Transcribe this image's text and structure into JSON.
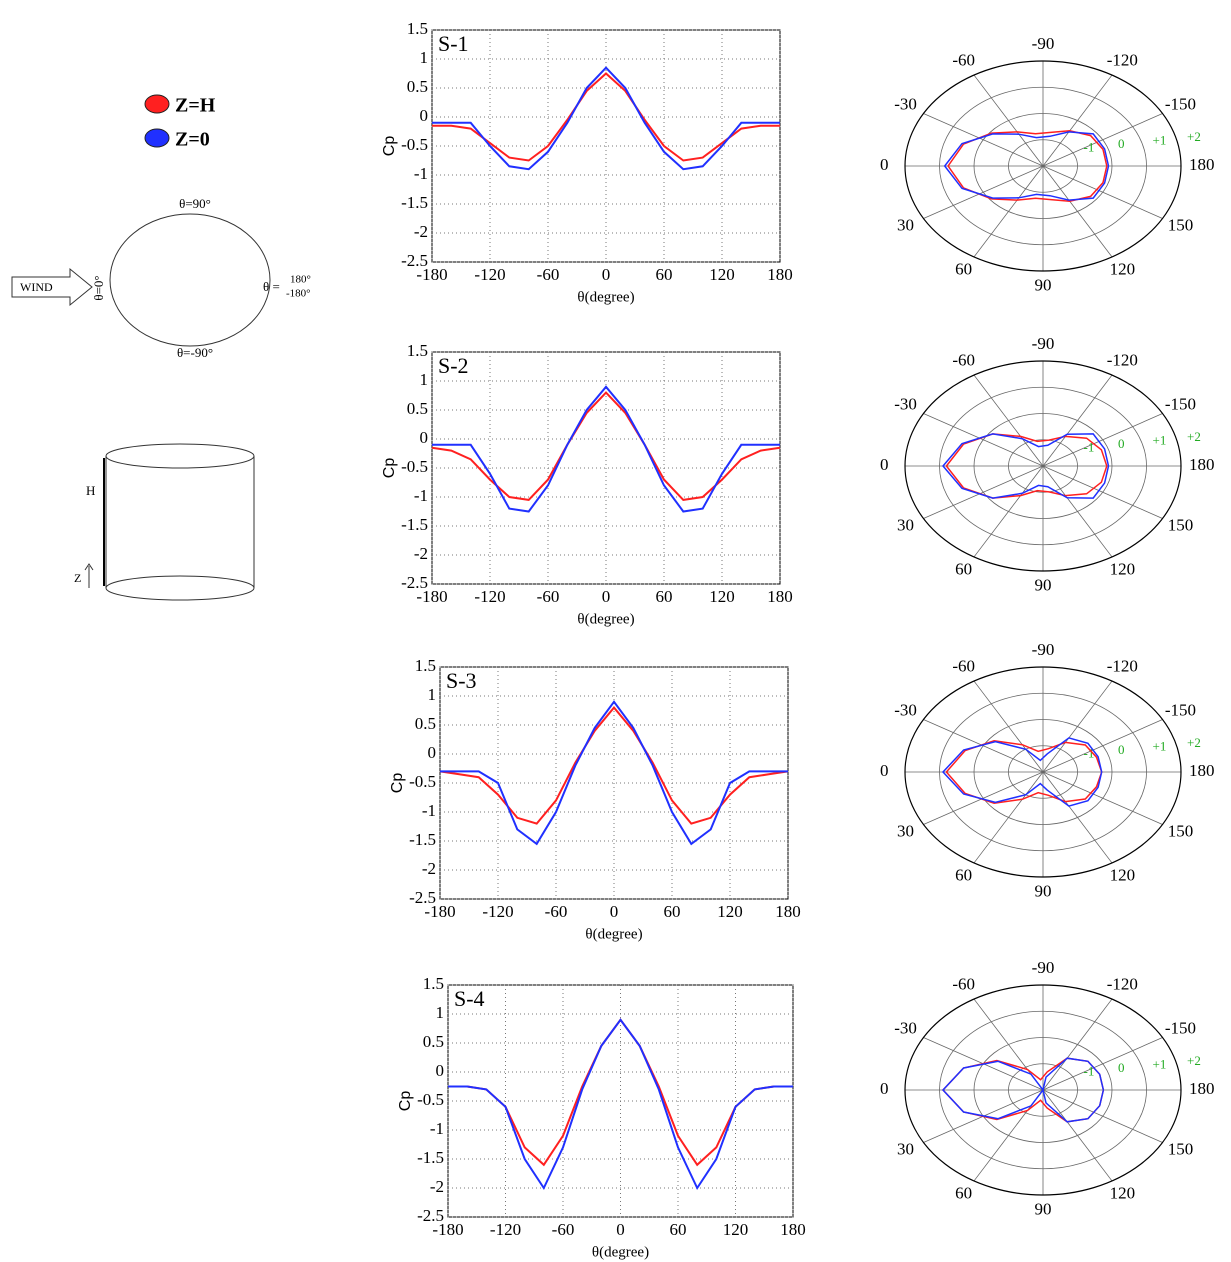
{
  "chart_data": [
    {
      "type": "line",
      "title": "S-1",
      "xlabel": "θ(degree)",
      "ylabel": "Cp",
      "grid": true,
      "x": [
        -180,
        -160,
        -140,
        -120,
        -100,
        -80,
        -60,
        -40,
        -20,
        0,
        20,
        40,
        60,
        80,
        100,
        120,
        140,
        160,
        180
      ],
      "xlim": [
        -180,
        180
      ],
      "xticks": [
        -180,
        -120,
        -60,
        0,
        60,
        120,
        180
      ],
      "ylim": [
        -2.5,
        1.5
      ],
      "yticks": [
        -2.5,
        -2,
        -1.5,
        -1,
        -0.5,
        0,
        0.5,
        1,
        1.5
      ],
      "series": [
        {
          "name": "Z=H",
          "color": "#ff2020",
          "values": [
            -0.15,
            -0.15,
            -0.2,
            -0.45,
            -0.7,
            -0.75,
            -0.5,
            -0.05,
            0.45,
            0.75,
            0.45,
            -0.05,
            -0.5,
            -0.75,
            -0.7,
            -0.45,
            -0.2,
            -0.15,
            -0.15
          ]
        },
        {
          "name": "Z=0",
          "color": "#2030ff",
          "values": [
            -0.1,
            -0.1,
            -0.1,
            -0.5,
            -0.85,
            -0.9,
            -0.6,
            -0.1,
            0.5,
            0.85,
            0.5,
            -0.1,
            -0.6,
            -0.9,
            -0.85,
            -0.5,
            -0.1,
            -0.1,
            -0.1
          ]
        }
      ]
    },
    {
      "type": "polar",
      "theta": [
        -180,
        -160,
        -140,
        -120,
        -100,
        -80,
        -60,
        -40,
        -20,
        0,
        20,
        40,
        60,
        80,
        100,
        120,
        140,
        160,
        180
      ],
      "rlim": [
        -2,
        2
      ],
      "rticks": [
        -1,
        0,
        {
          "value": 1,
          "label": "+1"
        },
        {
          "value": 2,
          "label": "+2"
        }
      ],
      "rtick_color": "#22aa22",
      "thetaticks": [
        0,
        30,
        60,
        90,
        120,
        150,
        180,
        -150,
        -120,
        -90,
        -60,
        -30
      ],
      "series": [
        {
          "color": "#ff2020",
          "values": [
            -0.15,
            -0.15,
            -0.2,
            -0.45,
            -0.7,
            -0.75,
            -0.5,
            -0.05,
            0.45,
            0.75,
            0.45,
            -0.05,
            -0.5,
            -0.75,
            -0.7,
            -0.45,
            -0.2,
            -0.15,
            -0.15
          ]
        },
        {
          "color": "#2030ff",
          "values": [
            -0.1,
            -0.1,
            -0.1,
            -0.5,
            -0.85,
            -0.9,
            -0.6,
            -0.1,
            0.5,
            0.85,
            0.5,
            -0.1,
            -0.6,
            -0.9,
            -0.85,
            -0.5,
            -0.1,
            -0.1,
            -0.1
          ]
        }
      ]
    },
    {
      "type": "line",
      "title": "S-2",
      "xlabel": "θ(degree)",
      "ylabel": "Cp",
      "grid": true,
      "x": [
        -180,
        -160,
        -140,
        -120,
        -100,
        -80,
        -60,
        -40,
        -20,
        0,
        20,
        40,
        60,
        80,
        100,
        120,
        140,
        160,
        180
      ],
      "xlim": [
        -180,
        180
      ],
      "xticks": [
        -180,
        -120,
        -60,
        0,
        60,
        120,
        180
      ],
      "ylim": [
        -2.5,
        1.5
      ],
      "yticks": [
        -2.5,
        -2,
        -1.5,
        -1,
        -0.5,
        0,
        0.5,
        1,
        1.5
      ],
      "series": [
        {
          "color": "#ff2020",
          "values": [
            -0.15,
            -0.2,
            -0.35,
            -0.7,
            -1,
            -1.05,
            -0.7,
            -0.1,
            0.45,
            0.8,
            0.45,
            -0.1,
            -0.7,
            -1.05,
            -1,
            -0.7,
            -0.35,
            -0.2,
            -0.15
          ]
        },
        {
          "color": "#2030ff",
          "values": [
            -0.1,
            -0.1,
            -0.1,
            -0.6,
            -1.2,
            -1.25,
            -0.8,
            -0.1,
            0.5,
            0.9,
            0.5,
            -0.1,
            -0.8,
            -1.25,
            -1.2,
            -0.6,
            -0.1,
            -0.1,
            -0.1
          ]
        }
      ]
    },
    {
      "type": "polar",
      "theta": [
        -180,
        -160,
        -140,
        -120,
        -100,
        -80,
        -60,
        -40,
        -20,
        0,
        20,
        40,
        60,
        80,
        100,
        120,
        140,
        160,
        180
      ],
      "rlim": [
        -2,
        2
      ],
      "rticks": [
        -1,
        0,
        {
          "value": 1,
          "label": "+1"
        },
        {
          "value": 2,
          "label": "+2"
        }
      ],
      "rtick_color": "#22aa22",
      "thetaticks": [
        0,
        30,
        60,
        90,
        120,
        150,
        180,
        -150,
        -120,
        -90,
        -60,
        -30
      ],
      "series": [
        {
          "color": "#ff2020",
          "values": [
            -0.15,
            -0.2,
            -0.35,
            -0.7,
            -1,
            -1.05,
            -0.7,
            -0.1,
            0.45,
            0.8,
            0.45,
            -0.1,
            -0.7,
            -1.05,
            -1,
            -0.7,
            -0.35,
            -0.2,
            -0.15
          ]
        },
        {
          "color": "#2030ff",
          "values": [
            -0.1,
            -0.1,
            -0.1,
            -0.6,
            -1.2,
            -1.25,
            -0.8,
            -0.1,
            0.5,
            0.9,
            0.5,
            -0.1,
            -0.8,
            -1.25,
            -1.2,
            -0.6,
            -0.1,
            -0.1,
            -0.1
          ]
        }
      ]
    },
    {
      "type": "line",
      "title": "S-3",
      "xlabel": "θ(degree)",
      "ylabel": "Cp",
      "grid": true,
      "x": [
        -180,
        -160,
        -140,
        -120,
        -100,
        -80,
        -60,
        -40,
        -20,
        0,
        20,
        40,
        60,
        80,
        100,
        120,
        140,
        160,
        180
      ],
      "xlim": [
        -180,
        180
      ],
      "xticks": [
        -180,
        -120,
        -60,
        0,
        60,
        120,
        180
      ],
      "ylim": [
        -2.5,
        1.5
      ],
      "yticks": [
        -2.5,
        -2,
        -1.5,
        -1,
        -0.5,
        0,
        0.5,
        1,
        1.5
      ],
      "series": [
        {
          "color": "#ff2020",
          "values": [
            -0.3,
            -0.35,
            -0.4,
            -0.7,
            -1.1,
            -1.2,
            -0.8,
            -0.15,
            0.4,
            0.8,
            0.4,
            -0.15,
            -0.8,
            -1.2,
            -1.1,
            -0.7,
            -0.4,
            -0.35,
            -0.3
          ]
        },
        {
          "color": "#2030ff",
          "values": [
            -0.3,
            -0.3,
            -0.3,
            -0.5,
            -1.3,
            -1.55,
            -1,
            -0.2,
            0.45,
            0.9,
            0.45,
            -0.2,
            -1,
            -1.55,
            -1.3,
            -0.5,
            -0.3,
            -0.3,
            -0.3
          ]
        }
      ]
    },
    {
      "type": "polar",
      "theta": [
        -180,
        -160,
        -140,
        -120,
        -100,
        -80,
        -60,
        -40,
        -20,
        0,
        20,
        40,
        60,
        80,
        100,
        120,
        140,
        160,
        180
      ],
      "rlim": [
        -2,
        2
      ],
      "rticks": [
        -1,
        0,
        {
          "value": 1,
          "label": "+1"
        },
        {
          "value": 2,
          "label": "+2"
        }
      ],
      "rtick_color": "#22aa22",
      "thetaticks": [
        0,
        30,
        60,
        90,
        120,
        150,
        180,
        -150,
        -120,
        -90,
        -60,
        -30
      ],
      "series": [
        {
          "color": "#ff2020",
          "values": [
            -0.3,
            -0.35,
            -0.4,
            -0.7,
            -1.1,
            -1.2,
            -0.8,
            -0.15,
            0.4,
            0.8,
            0.4,
            -0.15,
            -0.8,
            -1.2,
            -1.1,
            -0.7,
            -0.4,
            -0.35,
            -0.3
          ]
        },
        {
          "color": "#2030ff",
          "values": [
            -0.3,
            -0.3,
            -0.3,
            -0.5,
            -1.3,
            -1.55,
            -1,
            -0.2,
            0.45,
            0.9,
            0.45,
            -0.2,
            -1,
            -1.55,
            -1.3,
            -0.5,
            -0.3,
            -0.3,
            -0.3
          ]
        }
      ]
    },
    {
      "type": "line",
      "title": "S-4",
      "xlabel": "θ(degree)",
      "ylabel": "Cp",
      "grid": true,
      "x": [
        -180,
        -160,
        -140,
        -120,
        -100,
        -80,
        -60,
        -40,
        -20,
        0,
        20,
        40,
        60,
        80,
        100,
        120,
        140,
        160,
        180
      ],
      "xlim": [
        -180,
        180
      ],
      "xticks": [
        -180,
        -120,
        -60,
        0,
        60,
        120,
        180
      ],
      "ylim": [
        -2.5,
        1.5
      ],
      "yticks": [
        -2.5,
        -2,
        -1.5,
        -1,
        -0.5,
        0,
        0.5,
        1,
        1.5
      ],
      "series": [
        {
          "color": "#ff2020",
          "values": [
            -0.25,
            -0.25,
            -0.3,
            -0.6,
            -1.3,
            -1.6,
            -1.1,
            -0.25,
            0.45,
            0.9,
            0.45,
            -0.25,
            -1.1,
            -1.6,
            -1.3,
            -0.6,
            -0.3,
            -0.25,
            -0.25
          ]
        },
        {
          "color": "#2030ff",
          "values": [
            -0.25,
            -0.25,
            -0.3,
            -0.6,
            -1.5,
            -2,
            -1.3,
            -0.3,
            0.45,
            0.9,
            0.45,
            -0.3,
            -1.3,
            -2,
            -1.5,
            -0.6,
            -0.3,
            -0.25,
            -0.25
          ]
        }
      ]
    },
    {
      "type": "polar",
      "theta": [
        -180,
        -160,
        -140,
        -120,
        -100,
        -80,
        -60,
        -40,
        -20,
        0,
        20,
        40,
        60,
        80,
        100,
        120,
        140,
        160,
        180
      ],
      "rlim": [
        -2,
        2
      ],
      "rticks": [
        -1,
        0,
        {
          "value": 1,
          "label": "+1"
        },
        {
          "value": 2,
          "label": "+2"
        }
      ],
      "rtick_color": "#22aa22",
      "thetaticks": [
        0,
        30,
        60,
        90,
        120,
        150,
        180,
        -150,
        -120,
        -90,
        -60,
        -30
      ],
      "series": [
        {
          "color": "#ff2020",
          "values": [
            -0.25,
            -0.25,
            -0.3,
            -0.6,
            -1.3,
            -1.6,
            -1.1,
            -0.25,
            0.45,
            0.9,
            0.45,
            -0.25,
            -1.1,
            -1.6,
            -1.3,
            -0.6,
            -0.3,
            -0.25,
            -0.25
          ]
        },
        {
          "color": "#2030ff",
          "values": [
            -0.25,
            -0.25,
            -0.3,
            -0.6,
            -1.5,
            -2,
            -1.3,
            -0.3,
            0.45,
            0.9,
            0.45,
            -0.3,
            -1.3,
            -2,
            -1.5,
            -0.6,
            -0.3,
            -0.25,
            -0.25
          ]
        }
      ]
    }
  ],
  "diagram": {
    "wind": "WIND",
    "theta_top": "θ=90°",
    "theta_left": "θ=0°",
    "theta_right_prefix": "θ =",
    "theta_right_values": [
      "180°",
      "-180°"
    ],
    "theta_bottom": "θ=-90°",
    "height": "H",
    "z": "Z"
  }
}
